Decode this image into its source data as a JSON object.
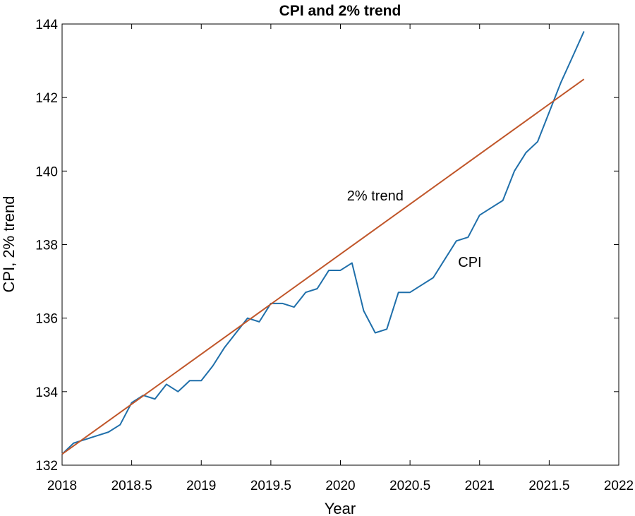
{
  "chart_data": {
    "type": "line",
    "title": "CPI and 2% trend",
    "xlabel": "Year",
    "ylabel": "CPI, 2% trend",
    "xlim": [
      2018,
      2022
    ],
    "ylim": [
      132,
      144
    ],
    "x_ticks": [
      "2018",
      "2018.5",
      "2019",
      "2019.5",
      "2020",
      "2020.5",
      "2021",
      "2021.5",
      "2022"
    ],
    "y_ticks": [
      "132",
      "134",
      "136",
      "138",
      "140",
      "142",
      "144"
    ],
    "grid": false,
    "colors": {
      "cpi": "#1f6faa",
      "trend": "#c0562a"
    },
    "annotations": [
      {
        "text": "2% trend",
        "series": "trend",
        "x": 2020.25,
        "y": 139.2
      },
      {
        "text": "CPI",
        "series": "cpi",
        "x": 2020.93,
        "y": 137.4
      }
    ],
    "series": [
      {
        "key": "cpi",
        "x": [
          2018.0,
          2018.083,
          2018.167,
          2018.25,
          2018.333,
          2018.417,
          2018.5,
          2018.583,
          2018.667,
          2018.75,
          2018.833,
          2018.917,
          2019.0,
          2019.083,
          2019.167,
          2019.25,
          2019.333,
          2019.417,
          2019.5,
          2019.583,
          2019.667,
          2019.75,
          2019.833,
          2019.917,
          2020.0,
          2020.083,
          2020.167,
          2020.25,
          2020.333,
          2020.417,
          2020.5,
          2020.583,
          2020.667,
          2020.75,
          2020.833,
          2020.917,
          2021.0,
          2021.083,
          2021.167,
          2021.25,
          2021.333,
          2021.417,
          2021.5,
          2021.583,
          2021.667,
          2021.75
        ],
        "values": [
          132.3,
          132.6,
          132.7,
          132.8,
          132.9,
          133.1,
          133.7,
          133.9,
          133.8,
          134.2,
          134.0,
          134.3,
          134.3,
          134.7,
          135.2,
          135.6,
          136.0,
          135.9,
          136.4,
          136.4,
          136.3,
          136.7,
          136.8,
          137.3,
          137.3,
          137.5,
          136.2,
          135.6,
          135.7,
          136.7,
          136.7,
          136.9,
          137.1,
          137.6,
          138.1,
          138.2,
          138.8,
          139.0,
          139.2,
          140.0,
          140.5,
          140.8,
          141.6,
          142.4,
          143.1,
          143.8
        ]
      },
      {
        "key": "trend",
        "x": [
          2018.0,
          2021.75
        ],
        "values": [
          132.3,
          142.5
        ]
      }
    ]
  }
}
